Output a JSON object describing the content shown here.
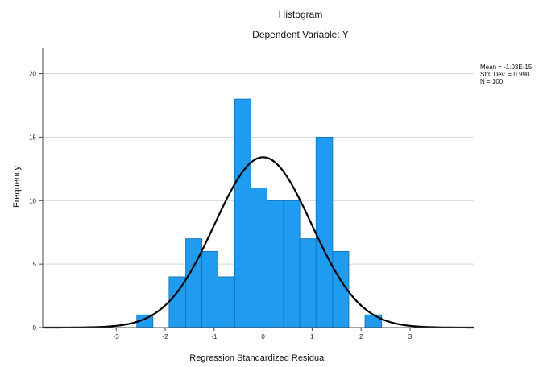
{
  "chart_data": {
    "type": "bar",
    "title": "Histogram",
    "subtitle": "Dependent Variable: Y",
    "xlabel": "Regression Standardized Residual",
    "ylabel": "Frequency",
    "xlim": [
      -4.5,
      4.3
    ],
    "ylim": [
      0,
      22
    ],
    "x_ticks": [
      -3,
      -2,
      -1,
      0,
      1,
      2,
      3
    ],
    "y_ticks": [
      0,
      5,
      10,
      15,
      20
    ],
    "grid": "horizontal",
    "bin_width": 0.333,
    "bins": [
      {
        "start": -2.58,
        "end": -2.25,
        "frequency": 1
      },
      {
        "start": -1.92,
        "end": -1.58,
        "frequency": 4
      },
      {
        "start": -1.58,
        "end": -1.25,
        "frequency": 7
      },
      {
        "start": -1.25,
        "end": -0.92,
        "frequency": 6
      },
      {
        "start": -0.92,
        "end": -0.58,
        "frequency": 4
      },
      {
        "start": -0.58,
        "end": -0.25,
        "frequency": 18
      },
      {
        "start": -0.25,
        "end": 0.08,
        "frequency": 11
      },
      {
        "start": 0.08,
        "end": 0.42,
        "frequency": 10
      },
      {
        "start": 0.42,
        "end": 0.75,
        "frequency": 10
      },
      {
        "start": 0.75,
        "end": 1.08,
        "frequency": 7
      },
      {
        "start": 1.08,
        "end": 1.42,
        "frequency": 15
      },
      {
        "start": 1.42,
        "end": 1.75,
        "frequency": 6
      },
      {
        "start": 2.08,
        "end": 2.42,
        "frequency": 1
      }
    ],
    "normal_curve": {
      "mean": 0,
      "std_dev": 0.99,
      "n": 100
    },
    "legend": {
      "placement": "top-right",
      "lines": [
        "Mean = -1.03E-15",
        "Std. Dev. = 0.990",
        "N = 100"
      ]
    },
    "colors": {
      "bar": "#1f9cf0",
      "bar_stroke": "#0e6fb0",
      "curve": "#000000",
      "grid": "#d4d4d4"
    }
  }
}
